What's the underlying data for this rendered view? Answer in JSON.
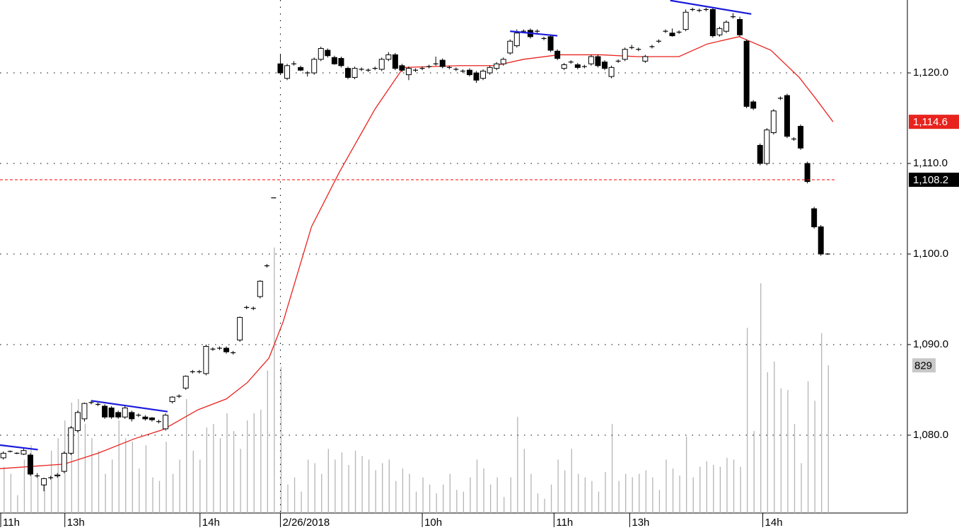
{
  "chart_data": {
    "type": "candlestick",
    "xlim": [
      -0.5,
      133.8
    ],
    "ylim": [
      1071.4,
      1128.05
    ],
    "yticks": [
      {
        "value": 1080,
        "label": "1,080.0"
      },
      {
        "value": 1090,
        "label": "1,090.0"
      },
      {
        "value": 1100,
        "label": "1,100.0"
      },
      {
        "value": 1110,
        "label": "1,110.0"
      },
      {
        "value": 1120,
        "label": "1,120.0"
      }
    ],
    "xticks": [
      {
        "value": -0.5,
        "label": "11h"
      },
      {
        "value": 9.1,
        "label": "13h"
      },
      {
        "value": 29.1,
        "label": "14h"
      },
      {
        "value": 41,
        "label": "2/26/2018"
      },
      {
        "value": 62,
        "label": "10h"
      },
      {
        "value": 81.5,
        "label": "11h"
      },
      {
        "value": 92.7,
        "label": "13h"
      },
      {
        "value": 112.4,
        "label": "14h"
      }
    ],
    "grid": true,
    "up_color": "#ffffff",
    "down_color": "#000000",
    "ohlc": [
      [
        1077.5,
        1078.2,
        1077.3,
        1078.0
      ],
      [
        1078.2,
        1078.3,
        1078.1,
        1078.2
      ],
      [
        1078.0,
        1078.1,
        1077.9,
        1078.0
      ],
      [
        1077.9,
        1078.5,
        1077.8,
        1078.3
      ],
      [
        1077.8,
        1078.0,
        1075.5,
        1075.7
      ],
      [
        1075.5,
        1075.8,
        1075.3,
        1075.5
      ],
      [
        1074.5,
        1075.3,
        1073.8,
        1075.2
      ],
      [
        1075.3,
        1075.5,
        1075.1,
        1075.3
      ],
      [
        1075.5,
        1075.8,
        1075.3,
        1075.6
      ],
      [
        1076.0,
        1078.2,
        1075.8,
        1078.0
      ],
      [
        1078.0,
        1081.0,
        1077.8,
        1080.8
      ],
      [
        1080.5,
        1082.7,
        1080.3,
        1082.5
      ],
      [
        1081.8,
        1083.6,
        1081.5,
        1083.5
      ],
      [
        1083.6,
        1083.8,
        1083.4,
        1083.6
      ],
      [
        1083.4,
        1083.6,
        1083.2,
        1083.4
      ],
      [
        1083.2,
        1083.4,
        1081.8,
        1082.0
      ],
      [
        1083.0,
        1083.2,
        1081.8,
        1082.0
      ],
      [
        1082.5,
        1082.7,
        1081.8,
        1082.0
      ],
      [
        1082.0,
        1083.2,
        1081.8,
        1083.0
      ],
      [
        1082.5,
        1082.7,
        1081.5,
        1081.8
      ],
      [
        1082.2,
        1082.4,
        1082.0,
        1082.2
      ],
      [
        1082.0,
        1082.2,
        1081.6,
        1081.8
      ],
      [
        1081.9,
        1082.0,
        1081.5,
        1081.7
      ],
      [
        1081.5,
        1081.7,
        1081.3,
        1081.5
      ],
      [
        1080.7,
        1082.4,
        1080.5,
        1082.2
      ],
      [
        1083.7,
        1084.3,
        1083.5,
        1084.2
      ],
      [
        1084.3,
        1084.5,
        1084.1,
        1084.3
      ],
      [
        1085.2,
        1086.6,
        1085.0,
        1086.5
      ],
      [
        1087.0,
        1087.2,
        1086.8,
        1087.0
      ],
      [
        1087.0,
        1087.2,
        1086.8,
        1087.0
      ],
      [
        1086.8,
        1090.0,
        1086.6,
        1089.8
      ],
      [
        1089.5,
        1089.7,
        1089.3,
        1089.5
      ],
      [
        1089.6,
        1089.8,
        1089.4,
        1089.6
      ],
      [
        1089.6,
        1089.8,
        1089.0,
        1089.2
      ],
      [
        1089.1,
        1089.3,
        1088.9,
        1089.1
      ],
      [
        1090.5,
        1093.1,
        1090.3,
        1093.0
      ],
      [
        1094.1,
        1094.3,
        1093.9,
        1094.1
      ],
      [
        1094.0,
        1094.2,
        1093.8,
        1094.0
      ],
      [
        1095.3,
        1097.1,
        1095.1,
        1097.0
      ],
      [
        1098.7,
        1098.9,
        1098.5,
        1098.7
      ],
      [
        1106.2,
        1106.2,
        1106.2,
        1106.2
      ],
      [
        1121.0,
        1122.0,
        1119.8,
        1120.0
      ],
      [
        1119.4,
        1121.0,
        1119.2,
        1120.8
      ],
      [
        1121.0,
        1121.3,
        1120.8,
        1121.0
      ],
      [
        1120.6,
        1120.8,
        1120.2,
        1120.3
      ],
      [
        1120.0,
        1120.2,
        1119.6,
        1120.0
      ],
      [
        1120.0,
        1121.7,
        1119.8,
        1121.5
      ],
      [
        1121.5,
        1122.9,
        1121.3,
        1122.7
      ],
      [
        1122.5,
        1122.7,
        1121.7,
        1121.9
      ],
      [
        1121.7,
        1121.9,
        1120.9,
        1121.0
      ],
      [
        1121.6,
        1121.8,
        1120.6,
        1120.8
      ],
      [
        1120.5,
        1120.7,
        1119.3,
        1119.5
      ],
      [
        1119.5,
        1120.7,
        1119.3,
        1120.5
      ],
      [
        1120.4,
        1120.6,
        1120.2,
        1120.4
      ],
      [
        1120.3,
        1120.5,
        1120.1,
        1120.3
      ],
      [
        1120.5,
        1120.7,
        1120.3,
        1120.5
      ],
      [
        1120.4,
        1121.7,
        1120.2,
        1121.5
      ],
      [
        1121.5,
        1122.3,
        1121.3,
        1122.0
      ],
      [
        1122.0,
        1122.2,
        1120.3,
        1120.5
      ],
      [
        1120.8,
        1121.0,
        1120.1,
        1120.3
      ],
      [
        1119.8,
        1120.7,
        1119.2,
        1120.5
      ],
      [
        1120.3,
        1120.5,
        1120.1,
        1120.3
      ],
      [
        1120.5,
        1120.7,
        1120.3,
        1120.5
      ],
      [
        1120.7,
        1120.9,
        1120.5,
        1120.7
      ],
      [
        1121.0,
        1121.8,
        1120.8,
        1121.0
      ],
      [
        1121.4,
        1121.6,
        1120.5,
        1120.7
      ],
      [
        1120.6,
        1120.8,
        1120.4,
        1120.6
      ],
      [
        1120.4,
        1120.6,
        1120.2,
        1120.4
      ],
      [
        1120.2,
        1120.4,
        1120.0,
        1120.2
      ],
      [
        1120.3,
        1120.5,
        1119.6,
        1119.8
      ],
      [
        1120.0,
        1120.2,
        1118.9,
        1119.2
      ],
      [
        1119.4,
        1120.4,
        1119.2,
        1120.2
      ],
      [
        1120.0,
        1120.8,
        1119.8,
        1120.6
      ],
      [
        1120.5,
        1121.2,
        1120.3,
        1121.0
      ],
      [
        1121.0,
        1121.7,
        1120.8,
        1121.5
      ],
      [
        1122.2,
        1123.7,
        1122.0,
        1123.5
      ],
      [
        1123.0,
        1124.8,
        1122.8,
        1124.4
      ],
      [
        1124.6,
        1124.8,
        1124.4,
        1124.6
      ],
      [
        1124.7,
        1124.9,
        1123.8,
        1124.0
      ],
      [
        1124.6,
        1124.8,
        1124.4,
        1124.6
      ],
      [
        1123.8,
        1124.0,
        1123.6,
        1123.8
      ],
      [
        1124.0,
        1124.2,
        1122.3,
        1122.5
      ],
      [
        1122.4,
        1122.6,
        1121.4,
        1121.6
      ],
      [
        1120.5,
        1121.1,
        1120.3,
        1120.9
      ],
      [
        1121.2,
        1121.4,
        1121.0,
        1121.2
      ],
      [
        1120.9,
        1121.1,
        1120.4,
        1120.6
      ],
      [
        1120.7,
        1120.9,
        1120.5,
        1120.7
      ],
      [
        1121.0,
        1122.0,
        1120.8,
        1121.8
      ],
      [
        1121.8,
        1122.0,
        1120.6,
        1120.8
      ],
      [
        1121.2,
        1121.4,
        1120.3,
        1120.5
      ],
      [
        1119.6,
        1120.8,
        1119.4,
        1120.6
      ],
      [
        1121.3,
        1121.5,
        1121.1,
        1121.3
      ],
      [
        1121.5,
        1122.8,
        1121.3,
        1122.6
      ],
      [
        1122.8,
        1123.1,
        1122.6,
        1122.8
      ],
      [
        1122.6,
        1122.8,
        1122.4,
        1122.6
      ],
      [
        1121.3,
        1122.0,
        1121.1,
        1121.8
      ],
      [
        1122.9,
        1123.1,
        1122.7,
        1122.9
      ],
      [
        1123.5,
        1123.7,
        1123.3,
        1123.5
      ],
      [
        1124.6,
        1124.8,
        1124.4,
        1124.6
      ],
      [
        1124.4,
        1124.9,
        1124.0,
        1124.1
      ],
      [
        1124.5,
        1124.7,
        1124.3,
        1124.5
      ],
      [
        1124.8,
        1127.0,
        1124.6,
        1126.7
      ],
      [
        1127.0,
        1127.2,
        1126.8,
        1127.0
      ],
      [
        1126.9,
        1127.1,
        1126.7,
        1126.9
      ],
      [
        1127.0,
        1127.2,
        1126.8,
        1127.0
      ],
      [
        1127.0,
        1127.2,
        1123.9,
        1124.1
      ],
      [
        1124.2,
        1125.1,
        1124.0,
        1124.9
      ],
      [
        1124.6,
        1125.8,
        1124.4,
        1125.6
      ],
      [
        1126.2,
        1126.6,
        1126.0,
        1126.2
      ],
      [
        1125.9,
        1126.2,
        1124.0,
        1124.2
      ],
      [
        1123.5,
        1123.7,
        1116.1,
        1116.3
      ],
      [
        1116.8,
        1117.0,
        1115.9,
        1116.1
      ],
      [
        1112.0,
        1112.2,
        1109.8,
        1110.0
      ],
      [
        1110.0,
        1113.9,
        1109.8,
        1113.7
      ],
      [
        1113.4,
        1116.0,
        1113.2,
        1115.8
      ],
      [
        1117.2,
        1117.4,
        1117.0,
        1117.2
      ],
      [
        1117.5,
        1117.7,
        1112.8,
        1113.0
      ],
      [
        1112.7,
        1112.9,
        1112.5,
        1112.7
      ],
      [
        1114.1,
        1114.3,
        1111.5,
        1111.7
      ],
      [
        1110.0,
        1110.2,
        1107.8,
        1108.0
      ],
      [
        1105.0,
        1105.2,
        1102.8,
        1103.0
      ],
      [
        1103.0,
        1103.2,
        1099.8,
        1100.0
      ],
      [
        1100.0,
        1100.1,
        1099.9,
        1100.0
      ]
    ],
    "volume": {
      "color": "#b4b4b4",
      "vlim": [
        0,
        2880
      ],
      "last_label": "829",
      "values": [
        260,
        220,
        100,
        300,
        380,
        200,
        180,
        350,
        420,
        520,
        620,
        640,
        500,
        420,
        350,
        220,
        300,
        520,
        420,
        400,
        250,
        380,
        200,
        180,
        400,
        220,
        300,
        640,
        350,
        300,
        480,
        500,
        420,
        560,
        460,
        360,
        520,
        560,
        580,
        800,
        1490,
        820,
        160,
        200,
        120,
        300,
        280,
        220,
        360,
        300,
        340,
        270,
        350,
        320,
        300,
        240,
        280,
        300,
        180,
        250,
        220,
        120,
        200,
        160,
        110,
        160,
        220,
        130,
        120,
        200,
        300,
        250,
        160,
        200,
        90,
        200,
        540,
        360,
        220,
        110,
        80,
        160,
        300,
        240,
        360,
        220,
        200,
        180,
        120,
        230,
        500,
        180,
        220,
        200,
        220,
        240,
        200,
        130,
        300,
        250,
        210,
        430,
        200,
        260,
        290,
        270,
        260,
        310,
        300,
        260,
        1040,
        460,
        1290,
        790,
        850,
        700,
        690,
        500,
        280,
        740,
        630,
        1010,
        829
      ]
    },
    "ma": {
      "color": "#e8231e",
      "last_label": "1,114.6",
      "x": [
        -0.5,
        9,
        14,
        19.4,
        23.6,
        28.8,
        33,
        36.1,
        39.3,
        41.4,
        45.6,
        49.7,
        55,
        59.2,
        67.5,
        72.8,
        77,
        82.2,
        88.5,
        93.7,
        100,
        104.2,
        108.9,
        113.6,
        117.8,
        120.4,
        122.8
      ],
      "values": [
        1076.3,
        1076.8,
        1078,
        1079.6,
        1080.6,
        1082.8,
        1084,
        1085.8,
        1088.5,
        1092.5,
        1103,
        1109,
        1116,
        1120.6,
        1120.8,
        1120.8,
        1121.5,
        1122,
        1122,
        1121.8,
        1121.8,
        1123.2,
        1124,
        1122.5,
        1119.5,
        1117,
        1114.6
      ]
    },
    "trendlines": {
      "color": "#1a1adc",
      "lines": [
        {
          "x": [
            -0.5,
            5.1
          ],
          "values": [
            1078.9,
            1078.4
          ]
        },
        {
          "x": [
            13,
            24.3
          ],
          "values": [
            1083.8,
            1082.6
          ]
        },
        {
          "x": [
            75,
            82
          ],
          "values": [
            1124.6,
            1124.1
          ]
        },
        {
          "x": [
            98.7,
            110.7
          ],
          "values": [
            1128,
            1126.5
          ]
        }
      ]
    },
    "hline": {
      "value": 1108.2,
      "label": "1,108.2",
      "color": "#ff0000"
    }
  }
}
